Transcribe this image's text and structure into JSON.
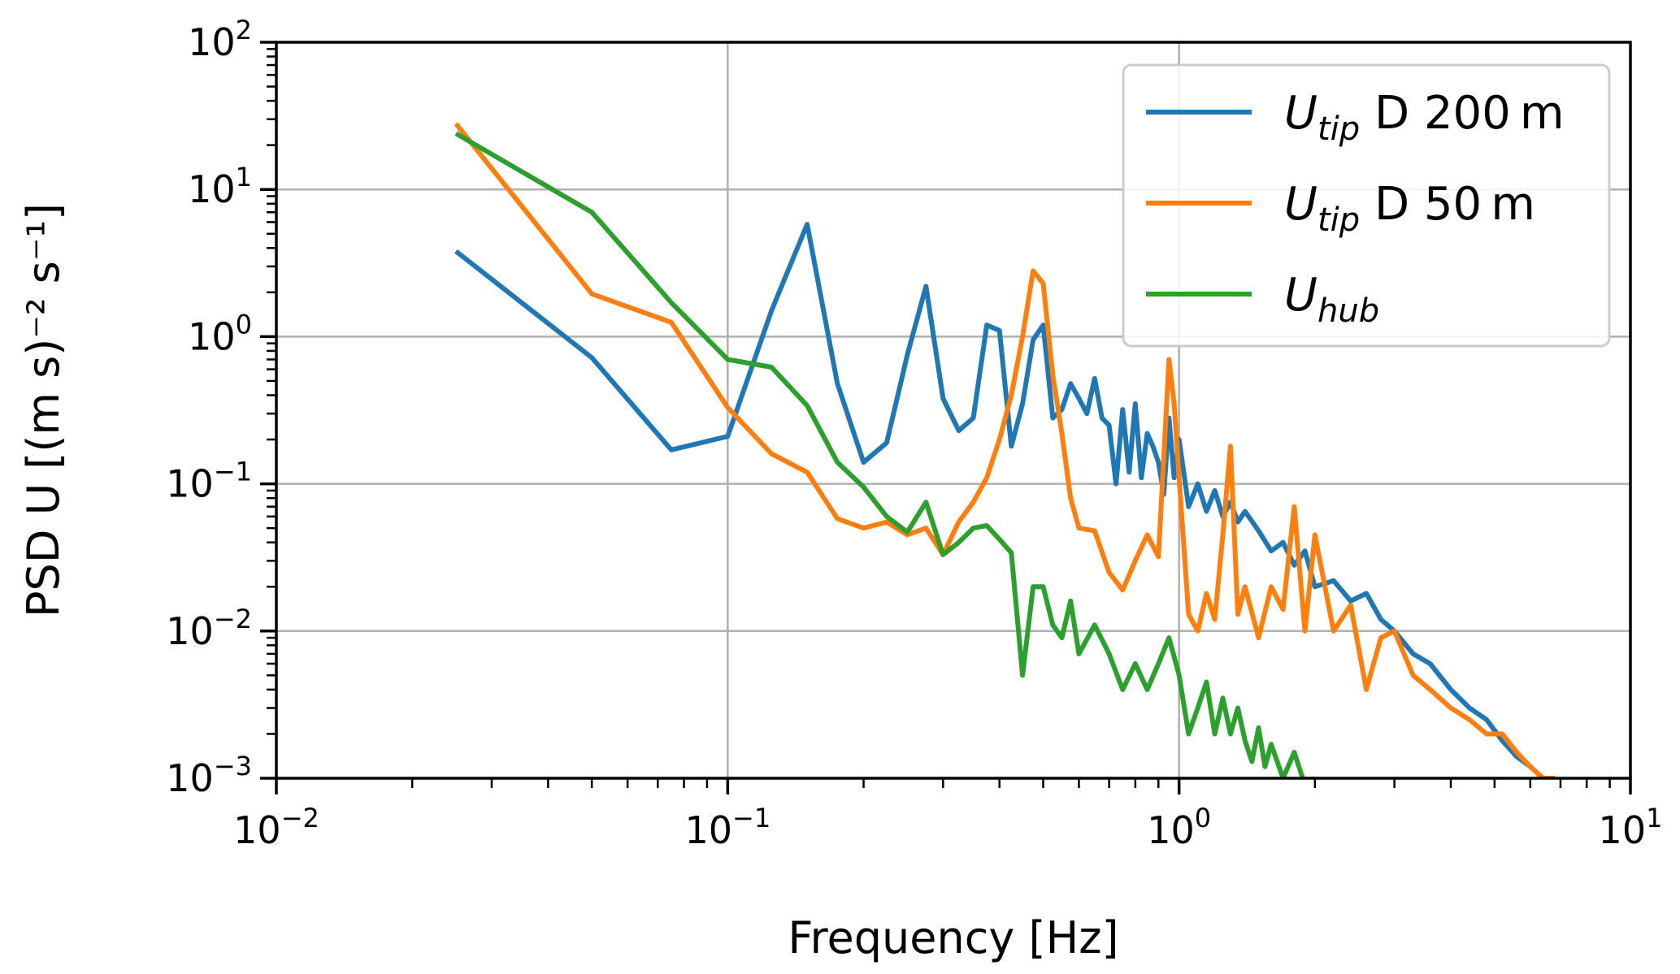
{
  "chart_data": {
    "type": "line",
    "xscale": "log",
    "yscale": "log",
    "xlabel": "Frequency [Hz]",
    "ylabel": "PSD U [(m s)⁻² s⁻¹]",
    "xlim": [
      0.01,
      10
    ],
    "ylim": [
      0.001,
      100
    ],
    "grid": true,
    "legend_position": "top-right",
    "x_ticks": [
      {
        "base": "10",
        "exp": "−2",
        "value": 0.01
      },
      {
        "base": "10",
        "exp": "−1",
        "value": 0.1
      },
      {
        "base": "10",
        "exp": "0",
        "value": 1
      },
      {
        "base": "10",
        "exp": "1",
        "value": 10
      }
    ],
    "y_ticks": [
      {
        "base": "10",
        "exp": "−3",
        "value": 0.001
      },
      {
        "base": "10",
        "exp": "−2",
        "value": 0.01
      },
      {
        "base": "10",
        "exp": "−1",
        "value": 0.1
      },
      {
        "base": "10",
        "exp": "0",
        "value": 1
      },
      {
        "base": "10",
        "exp": "1",
        "value": 10
      },
      {
        "base": "10",
        "exp": "2",
        "value": 100
      }
    ],
    "series": [
      {
        "name": "U_tip D 200 m",
        "legend": {
          "main": "U",
          "sub": "tip",
          "rest": " D 200 m"
        },
        "color": "#1f77b4",
        "x": [
          0.025,
          0.05,
          0.075,
          0.1,
          0.125,
          0.15,
          0.175,
          0.2,
          0.225,
          0.25,
          0.275,
          0.3,
          0.325,
          0.35,
          0.375,
          0.4,
          0.425,
          0.45,
          0.475,
          0.5,
          0.525,
          0.55,
          0.575,
          0.6,
          0.625,
          0.65,
          0.675,
          0.7,
          0.725,
          0.75,
          0.775,
          0.8,
          0.825,
          0.85,
          0.875,
          0.9,
          0.925,
          0.95,
          0.975,
          1.0,
          1.05,
          1.1,
          1.15,
          1.2,
          1.25,
          1.3,
          1.35,
          1.4,
          1.5,
          1.6,
          1.7,
          1.8,
          1.9,
          2.0,
          2.2,
          2.4,
          2.6,
          2.8,
          3.0,
          3.3,
          3.6,
          4.0,
          4.4,
          4.8,
          5.2,
          5.6,
          6.0,
          6.4,
          6.8
        ],
        "y": [
          3.8,
          0.72,
          0.17,
          0.21,
          1.5,
          5.8,
          0.48,
          0.14,
          0.19,
          0.75,
          2.2,
          0.38,
          0.23,
          0.28,
          1.2,
          1.1,
          0.18,
          0.35,
          0.95,
          1.2,
          0.28,
          0.32,
          0.48,
          0.38,
          0.3,
          0.52,
          0.28,
          0.25,
          0.1,
          0.32,
          0.12,
          0.35,
          0.11,
          0.22,
          0.18,
          0.14,
          0.085,
          0.28,
          0.11,
          0.2,
          0.07,
          0.1,
          0.065,
          0.09,
          0.06,
          0.075,
          0.055,
          0.065,
          0.048,
          0.035,
          0.04,
          0.028,
          0.035,
          0.02,
          0.022,
          0.016,
          0.018,
          0.012,
          0.01,
          0.007,
          0.006,
          0.004,
          0.003,
          0.0025,
          0.0018,
          0.0014,
          0.0012,
          0.001,
          0.001
        ]
      },
      {
        "name": "U_tip D 50 m",
        "legend": {
          "main": "U",
          "sub": "tip",
          "rest": " D 50 m"
        },
        "color": "#ff7f0e",
        "x": [
          0.025,
          0.05,
          0.075,
          0.1,
          0.125,
          0.15,
          0.175,
          0.2,
          0.225,
          0.25,
          0.275,
          0.3,
          0.325,
          0.35,
          0.375,
          0.4,
          0.425,
          0.45,
          0.475,
          0.5,
          0.525,
          0.55,
          0.575,
          0.6,
          0.65,
          0.7,
          0.75,
          0.8,
          0.85,
          0.9,
          0.95,
          0.975,
          1.0,
          1.05,
          1.1,
          1.15,
          1.2,
          1.25,
          1.3,
          1.35,
          1.4,
          1.5,
          1.6,
          1.7,
          1.8,
          1.9,
          2.0,
          2.2,
          2.4,
          2.6,
          2.8,
          3.0,
          3.3,
          3.6,
          4.0,
          4.4,
          4.8,
          5.2,
          5.6,
          6.0,
          6.4,
          6.8
        ],
        "y": [
          28,
          1.95,
          1.25,
          0.33,
          0.16,
          0.12,
          0.058,
          0.05,
          0.055,
          0.045,
          0.05,
          0.033,
          0.055,
          0.075,
          0.11,
          0.2,
          0.4,
          1.0,
          2.8,
          2.3,
          0.55,
          0.22,
          0.08,
          0.05,
          0.048,
          0.025,
          0.019,
          0.03,
          0.045,
          0.032,
          0.7,
          0.35,
          0.11,
          0.013,
          0.01,
          0.018,
          0.012,
          0.045,
          0.18,
          0.013,
          0.02,
          0.009,
          0.02,
          0.014,
          0.07,
          0.01,
          0.045,
          0.01,
          0.015,
          0.004,
          0.009,
          0.01,
          0.005,
          0.004,
          0.003,
          0.0025,
          0.002,
          0.002,
          0.0015,
          0.0012,
          0.001,
          0.001
        ]
      },
      {
        "name": "U_hub",
        "legend": {
          "main": "U",
          "sub": "hub",
          "rest": ""
        },
        "color": "#2ca02c",
        "x": [
          0.025,
          0.05,
          0.075,
          0.1,
          0.125,
          0.15,
          0.175,
          0.2,
          0.225,
          0.25,
          0.275,
          0.3,
          0.325,
          0.35,
          0.375,
          0.4,
          0.425,
          0.45,
          0.475,
          0.5,
          0.525,
          0.55,
          0.575,
          0.6,
          0.65,
          0.7,
          0.75,
          0.8,
          0.85,
          0.9,
          0.95,
          1.0,
          1.05,
          1.1,
          1.15,
          1.2,
          1.25,
          1.3,
          1.35,
          1.4,
          1.45,
          1.5,
          1.55,
          1.6,
          1.7,
          1.8,
          1.9,
          2.0
        ],
        "y": [
          24,
          7.0,
          1.7,
          0.7,
          0.62,
          0.34,
          0.14,
          0.095,
          0.06,
          0.047,
          0.075,
          0.033,
          0.04,
          0.05,
          0.052,
          0.042,
          0.034,
          0.005,
          0.02,
          0.02,
          0.011,
          0.009,
          0.016,
          0.007,
          0.011,
          0.007,
          0.004,
          0.006,
          0.004,
          0.006,
          0.009,
          0.005,
          0.002,
          0.003,
          0.0045,
          0.002,
          0.0035,
          0.002,
          0.003,
          0.0018,
          0.0013,
          0.0022,
          0.0012,
          0.0017,
          0.001,
          0.0015,
          0.0009,
          0.001
        ]
      }
    ]
  }
}
